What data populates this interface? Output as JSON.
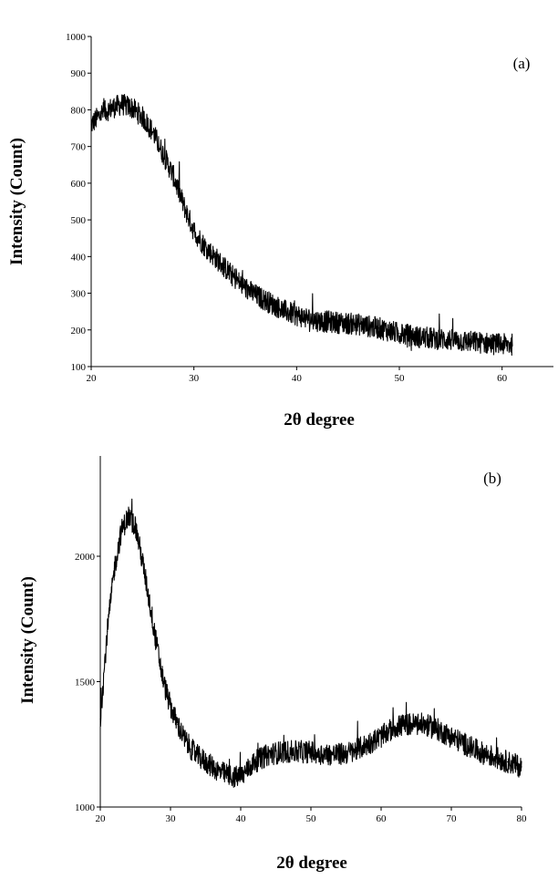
{
  "chart_data": [
    {
      "type": "line",
      "panel_label": "(a)",
      "xlabel": "2θ degree",
      "ylabel": "Intensity (Count)",
      "xlim": [
        20,
        65
      ],
      "ylim": [
        100,
        1000
      ],
      "xticks": [
        "20",
        "30",
        "40",
        "50",
        "60"
      ],
      "yticks": [
        "100",
        "200",
        "300",
        "400",
        "500",
        "600",
        "700",
        "800",
        "900",
        "1000"
      ],
      "grid": false,
      "noise": 30,
      "series": [
        {
          "x": [
            20,
            21,
            22,
            23,
            24,
            25,
            26,
            27,
            28,
            29,
            30,
            31,
            32,
            33,
            34,
            35,
            36,
            37,
            38,
            39,
            40,
            42,
            44,
            46,
            48,
            50,
            52,
            54,
            56,
            58,
            60,
            61
          ],
          "y": [
            760,
            790,
            805,
            815,
            805,
            780,
            740,
            680,
            620,
            540,
            470,
            430,
            400,
            370,
            340,
            315,
            295,
            280,
            265,
            250,
            240,
            225,
            220,
            215,
            205,
            190,
            180,
            175,
            170,
            165,
            160,
            160
          ]
        }
      ]
    },
    {
      "type": "line",
      "panel_label": "(b)",
      "xlabel": "2θ degree",
      "ylabel": "Intensity (Count)",
      "xlim": [
        20,
        80
      ],
      "ylim": [
        1000,
        2400
      ],
      "xticks": [
        "20",
        "30",
        "40",
        "50",
        "60",
        "70",
        "80"
      ],
      "yticks": [
        "1000",
        "1500",
        "2000"
      ],
      "grid": false,
      "noise": 45,
      "series": [
        {
          "x": [
            20,
            21,
            22,
            23,
            24,
            25,
            26,
            27,
            28,
            29,
            30,
            31,
            32,
            33,
            34,
            35,
            36,
            37,
            38,
            39,
            40,
            42,
            44,
            46,
            48,
            50,
            52,
            54,
            56,
            58,
            60,
            62,
            64,
            66,
            68,
            70,
            72,
            74,
            76,
            78,
            80
          ],
          "y": [
            1350,
            1700,
            1950,
            2100,
            2160,
            2120,
            1980,
            1820,
            1650,
            1500,
            1400,
            1330,
            1270,
            1230,
            1200,
            1180,
            1160,
            1140,
            1130,
            1120,
            1120,
            1180,
            1210,
            1220,
            1220,
            1220,
            1210,
            1210,
            1220,
            1250,
            1280,
            1320,
            1330,
            1330,
            1310,
            1280,
            1250,
            1220,
            1200,
            1180,
            1160
          ]
        }
      ]
    }
  ]
}
